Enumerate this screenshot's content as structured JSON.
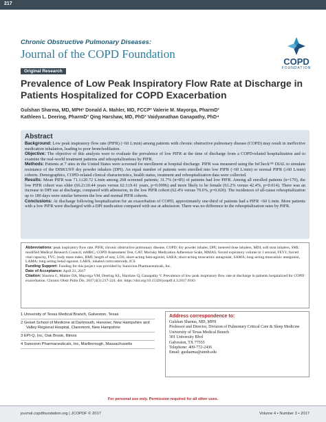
{
  "header": {
    "page_number": "217",
    "journal_line1": "Chronic Obstructive Pulmonary Diseases:",
    "journal_line2": "Journal of the COPD Foundation",
    "logo_main": "COPD",
    "logo_sub": "FOUNDATION"
  },
  "section": "Original Research",
  "title": "Prevalence of Low Peak Inspiratory Flow Rate at Discharge in Patients Hospitalized for COPD Exacerbation",
  "authors": [
    "Gulshan Sharma, MD, MPH¹ Donald A. Mahler, MD, FCCP² Valerie M. Mayorga, PharmD³",
    "Kathleen L. Deering, PharmD³ Qing Harshaw, MD, PhD³ Vaidyanathan Ganapathy, PhD⁴"
  ],
  "abstract": {
    "heading": "Abstract",
    "paragraphs": [
      {
        "label": "Background:",
        "text": "Low peak inspiratory flow rate (PIFR) (<60 L/min) among patients with chronic obstructive pulmonary disease (COPD) may result in ineffective medication inhalation, leading to poor bronchodilation."
      },
      {
        "label": "Objective:",
        "text": "The objective of this analysis were to evaluate the prevalence of low PIFR at the time of discharge from a COPD-related hospitalization and to examine the real-world treatment patterns and rehospitalizations by PIFR."
      },
      {
        "label": "Methods:",
        "text": "Patients at 7 sites in the United States were screened for enrollment at hospital discharge. PIFR was measured using the InCheck™ DIAL to simulate resistance of the DISKUS® dry powder inhalers (DPI). An equal number of patients were enrolled into low PIFR (<60 L/min) or normal PIFR (≥60 L/min) cohorts. Demographics, COPD-related clinical characteristics, health status, treatment and rehospitalization data were collected."
      },
      {
        "label": "Results:",
        "text": "Mean PIFR was 71.1±20.72 L/min among 268 screened patients; 31.7% (n=85) of patients had low PIFR. Among all enrolled patients (n=170), the low PIFR cohort was older (66.2±10.44 years versus 62.1±9.41 years, p=0.0096) and more likely to be female (61.2% versus 42.4%, p=0.014). There was an increase in DPI use at discharge, compared with admission, in the low PIFR cohort (62.4% versus 70.6%, p=0.020). The incidences of all-cause rehospitalization up to 180 days were similar between the low and normal PIFR cohorts."
      },
      {
        "label": "Conclusions:",
        "text": "At discharge following hospitalization for an exacerbation of COPD, approximately one-third of patients had a PIFR <60 L/min. More patients with a low PIFR were discharged with a DPI medication compared with use at admission. There was no difference in the rehospitalization rates by PIFR."
      }
    ]
  },
  "notes": [
    {
      "label": "Abbreviations:",
      "text": "peak inspiratory flow rate, PIFR; chronic obstructive pulmonary disease, COPD; dry powder inhaler, DPI; metered dose inhalers, MDI; soft mist inhalers, SMI; modified Medical Research Council, mMRC; COPD Assessment Test, CAT; Morisky Medication Adherence Scale, MMAS; forced expiratory volume in 1 second, FEV1; forced vital capacity, FVC; body mass index, BMI; length of stay, LOS; short-acting beta-agonist, SABA; short-acting muscarinic antagonist, SAMA; long-acting muscarinic antagonist, LAMA; long-acting beta2-agonist, LABA; inhaled corticosteroids, ICS"
    },
    {
      "label": "Funding Support:",
      "text": "Funding for this project was provided by Sunovion Pharmaceuticals, Inc."
    },
    {
      "label": "Date of Acceptance:",
      "text": "April 21, 2017"
    },
    {
      "label": "Citation:",
      "text": "Sharma G, Mahler DA, Mayorga VM, Deering KL, Harshaw Q, Ganapathy V. Prevalence of low peak inspiratory flow rate at discharge in patients hospitalized for COPD exacerbation. Chronic Obstr Pulm Dis. 2017;4(3):217-224. doi: https://doi.org/10.15326/jcopdf.4.3.2017.0183"
    }
  ],
  "affiliations": [
    {
      "num": "1",
      "text": "University of Texas Medical Branch, Galveston, Texas"
    },
    {
      "num": "2",
      "text": "Geisel School of Medicine at Dartmouth, Hanover, New Hampshire and Valley Regional Hospital, Claremont, New Hampshire"
    },
    {
      "num": "3",
      "text": "EPI-Q, Inc, Oak Brook, Illinois"
    },
    {
      "num": "4",
      "text": "Sunovion Pharmaceuticals, Inc, Marlborough, Massachusetts"
    }
  ],
  "correspondence": {
    "heading": "Address correspondence to:",
    "lines": [
      "Gulshan Sharma, MD, MPH",
      "Professor and Director, Division of Pulmonary Critical Care & Sleep Medicine",
      "University of Texas Medical Branch",
      "301 University Blvd",
      "Galveston, TX 77555",
      "Telephone: 409-772-2436",
      "Email: gusharma@utmb.edu"
    ]
  },
  "footer": {
    "notice": "For personal use only. Permission required for all other uses.",
    "left": "journal.copdfoundation.org | JCOPDF © 2017",
    "right": "Volume 4 • Number 3 • 2017"
  }
}
